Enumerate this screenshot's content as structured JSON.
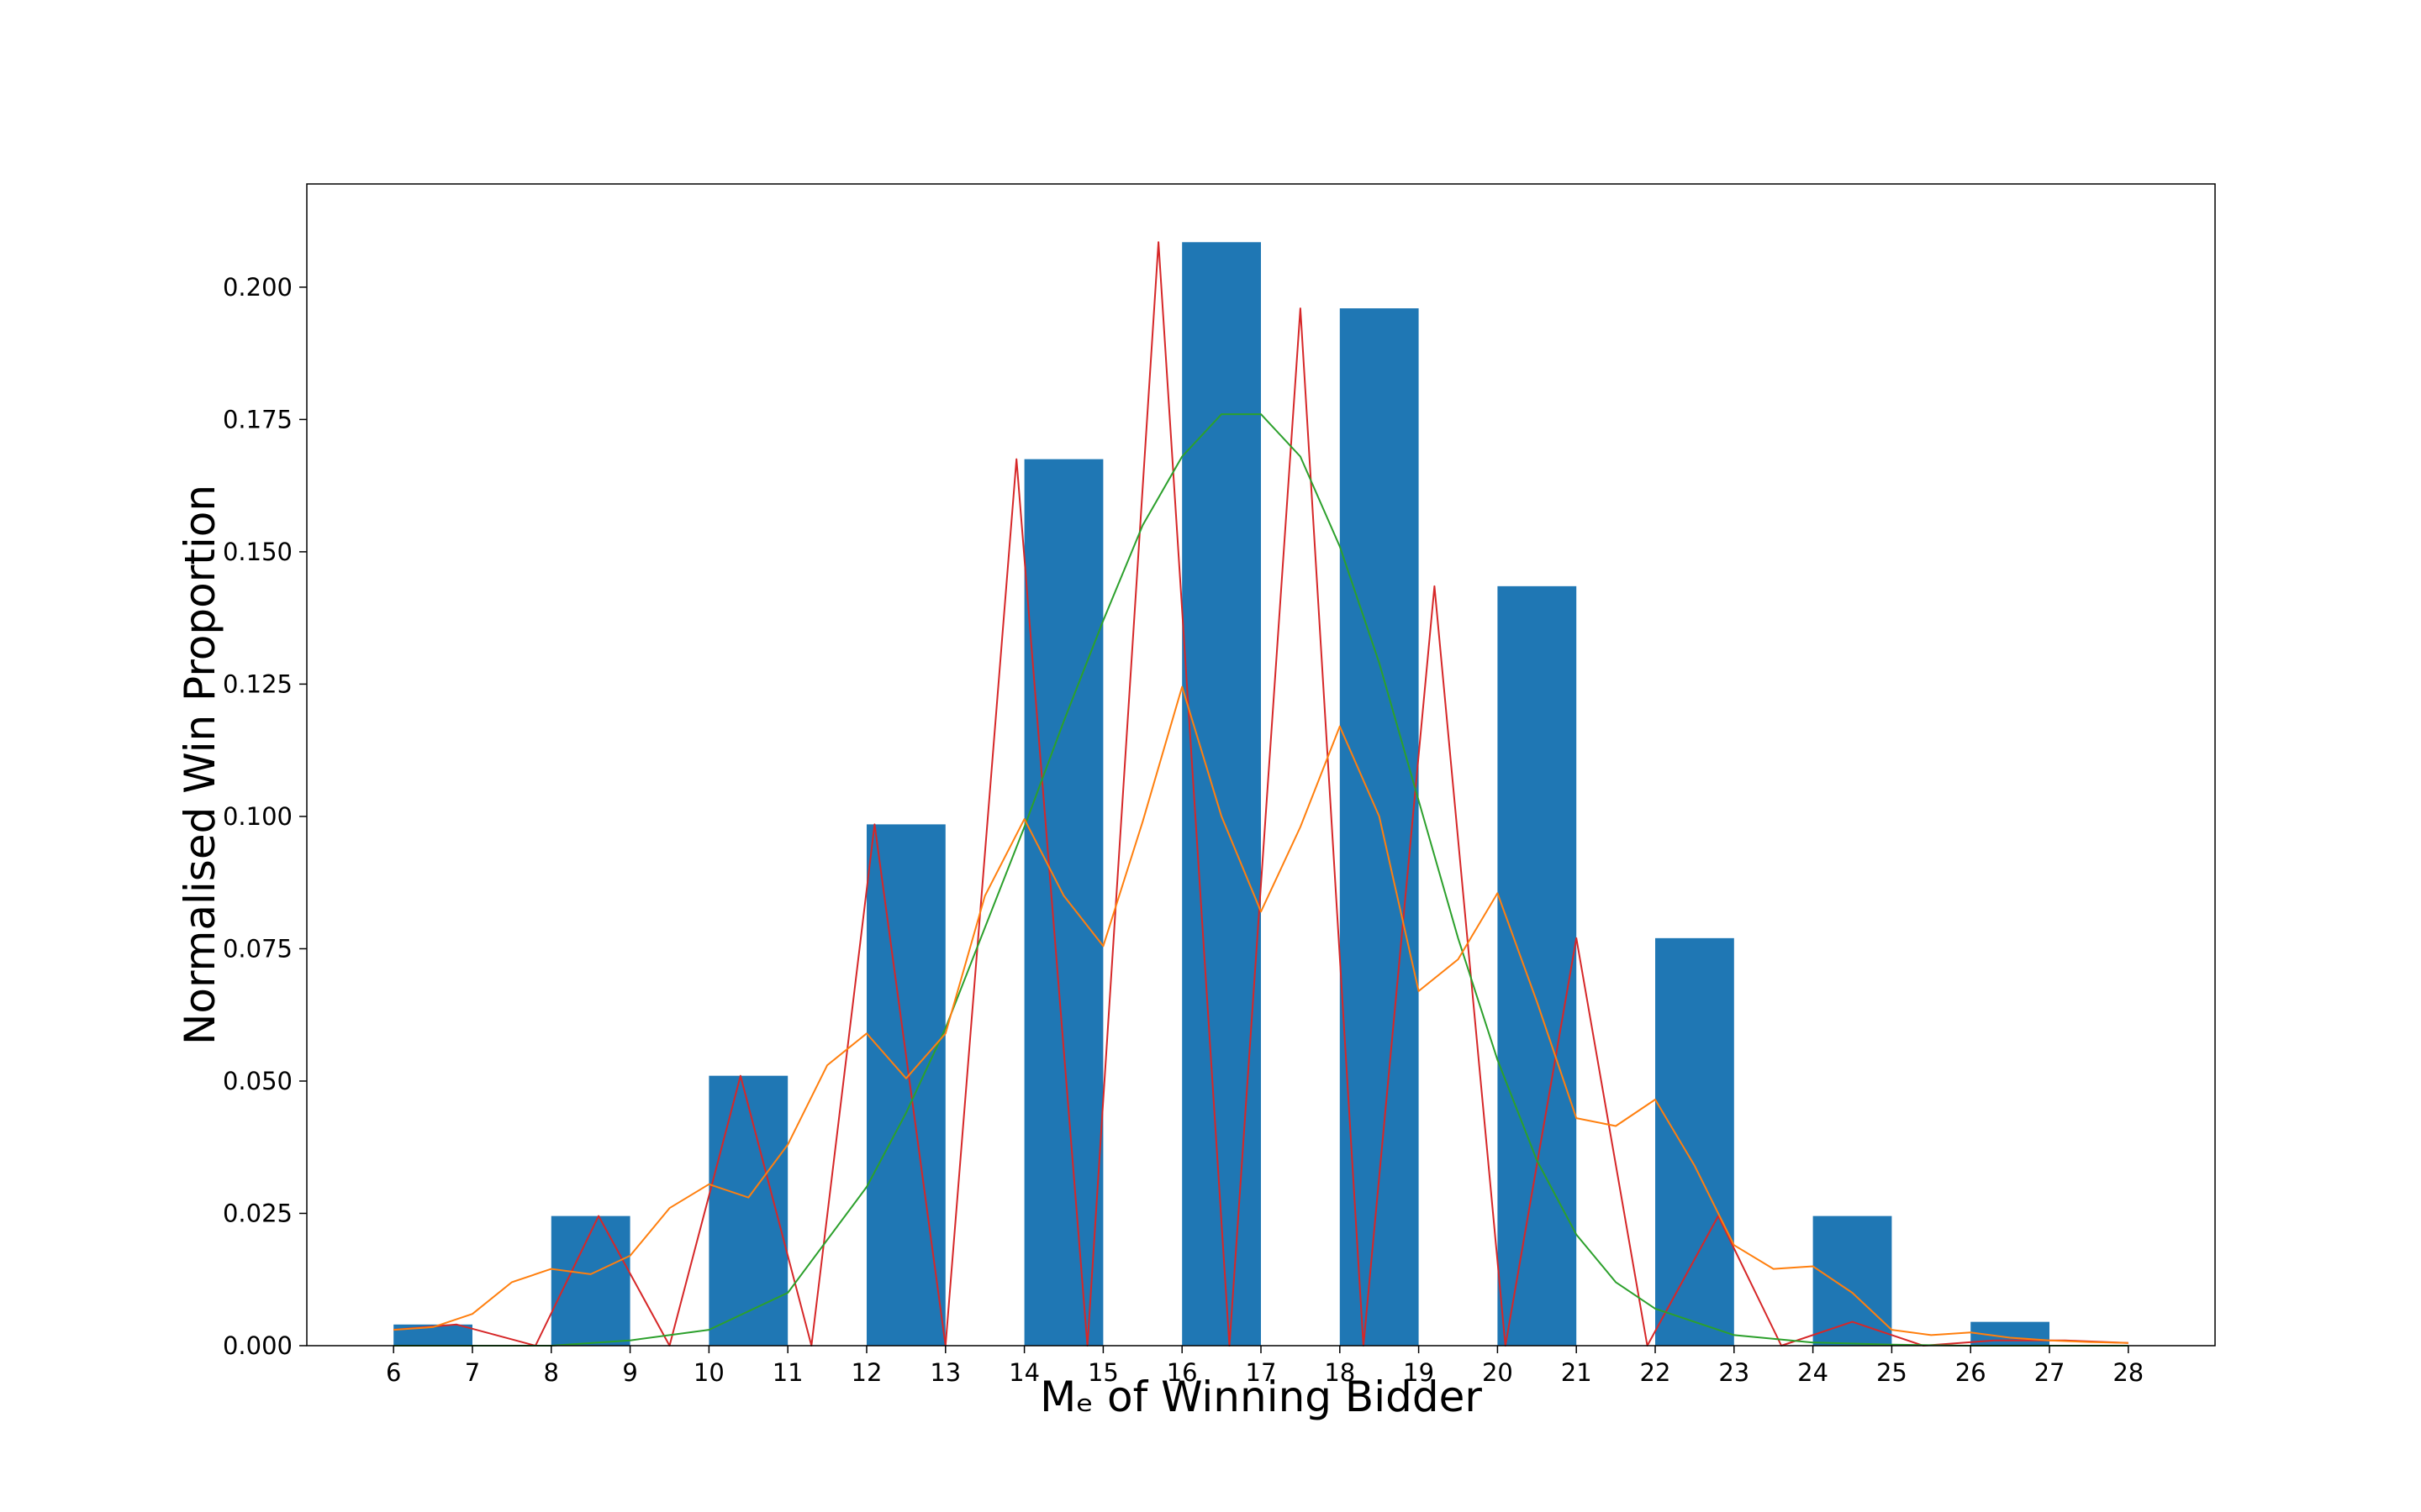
{
  "chart_data": {
    "type": "bar",
    "title": "",
    "xlabel": "Mₑ of Winning Bidder",
    "ylabel": "Normalised Win Proportion",
    "xlim": [
      4.9,
      29.1
    ],
    "ylim": [
      0,
      0.2195
    ],
    "x_ticks": [
      "6",
      "7",
      "8",
      "9",
      "10",
      "11",
      "12",
      "13",
      "14",
      "15",
      "16",
      "17",
      "18",
      "19",
      "20",
      "21",
      "22",
      "23",
      "24",
      "25",
      "26",
      "27",
      "28"
    ],
    "y_ticks": [
      "0.000",
      "0.025",
      "0.050",
      "0.075",
      "0.100",
      "0.125",
      "0.150",
      "0.175",
      "0.200"
    ],
    "bar_width": 1.0,
    "bars": {
      "name": "",
      "color": "#1f77b4",
      "left_edges": [
        6,
        8,
        10,
        12,
        14,
        16,
        18,
        20,
        22,
        24,
        26
      ],
      "values": [
        0.004,
        0.0245,
        0.051,
        0.0985,
        0.1675,
        0.2085,
        0.196,
        0.1435,
        0.077,
        0.0245,
        0.0045
      ]
    },
    "lines": [
      {
        "name": "",
        "color": "#d62728",
        "x": [
          6,
          6.8,
          7.8,
          8.6,
          9.5,
          10.4,
          11.3,
          12.1,
          13.0,
          13.9,
          14.8,
          15.7,
          16.6,
          17.5,
          18.3,
          19.2,
          20.1,
          21.0,
          21.9,
          22.8,
          23.6,
          24.5,
          25.4,
          26.3,
          27.2,
          28
        ],
        "y": [
          0.003,
          0.004,
          0.0,
          0.0245,
          0.0,
          0.051,
          0.0,
          0.0985,
          0.0,
          0.1675,
          0.0,
          0.2085,
          0.0,
          0.196,
          0.0,
          0.1435,
          0.0,
          0.077,
          0.0,
          0.0245,
          0.0,
          0.0045,
          0.0,
          0.001,
          0.001,
          0.0005
        ]
      },
      {
        "name": "",
        "color": "#2ca02c",
        "x": [
          6,
          7,
          8,
          9,
          10,
          11,
          12,
          12.5,
          13,
          13.5,
          14,
          14.5,
          15,
          15.5,
          16,
          16.5,
          17,
          17.5,
          18,
          18.5,
          19,
          19.5,
          20,
          20.5,
          21,
          21.5,
          22,
          23,
          24,
          25,
          26,
          27,
          28
        ],
        "y": [
          0.0,
          0.0,
          0.0,
          0.001,
          0.003,
          0.01,
          0.03,
          0.044,
          0.06,
          0.079,
          0.098,
          0.118,
          0.137,
          0.155,
          0.168,
          0.176,
          0.176,
          0.168,
          0.151,
          0.129,
          0.103,
          0.077,
          0.054,
          0.035,
          0.021,
          0.012,
          0.007,
          0.002,
          0.0006,
          0.0002,
          0.0,
          0.0,
          0.0
        ]
      },
      {
        "name": "",
        "color": "#ff7f0e",
        "x": [
          6,
          6.5,
          7,
          7.5,
          8,
          8.5,
          9,
          9.5,
          10,
          10.5,
          11,
          11.5,
          12,
          12.5,
          13,
          13.5,
          14,
          14.5,
          15,
          15.5,
          16,
          16.5,
          17,
          17.5,
          18,
          18.5,
          19,
          19.5,
          20,
          20.5,
          21,
          21.5,
          22,
          22.5,
          23,
          23.5,
          24,
          24.5,
          25,
          25.5,
          26,
          26.5,
          27,
          27.5,
          28
        ],
        "y": [
          0.003,
          0.0035,
          0.006,
          0.012,
          0.0145,
          0.0135,
          0.017,
          0.026,
          0.0305,
          0.028,
          0.038,
          0.053,
          0.059,
          0.0505,
          0.059,
          0.085,
          0.0995,
          0.085,
          0.0755,
          0.099,
          0.1245,
          0.1,
          0.082,
          0.098,
          0.117,
          0.1,
          0.067,
          0.073,
          0.0855,
          0.065,
          0.043,
          0.0415,
          0.0465,
          0.034,
          0.019,
          0.0145,
          0.015,
          0.01,
          0.003,
          0.002,
          0.0025,
          0.0015,
          0.001,
          0.0007,
          0.0005
        ]
      }
    ],
    "grid": false,
    "legend": "none"
  }
}
